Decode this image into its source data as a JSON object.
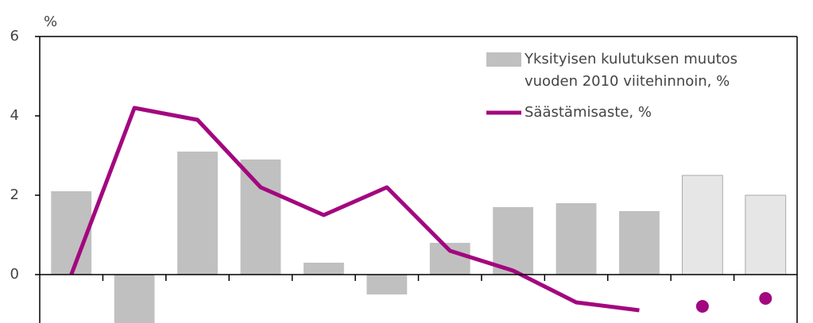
{
  "chart_data": {
    "type": "bar-line",
    "y_unit_label": "%",
    "categories": [
      null,
      null,
      null,
      null,
      null,
      null,
      null,
      null,
      null,
      null,
      null,
      null
    ],
    "series": [
      {
        "name": "Yksityisen kulutuksen muutos vuoden 2010 viitehinnoin, %",
        "kind": "bar",
        "colors": [
          "#c0c0c0",
          "#c0c0c0",
          "#c0c0c0",
          "#c0c0c0",
          "#c0c0c0",
          "#c0c0c0",
          "#c0c0c0",
          "#c0c0c0",
          "#c0c0c0",
          "#c0c0c0",
          "#e6e6e6",
          "#e6e6e6"
        ],
        "values": [
          2.1,
          -1.3,
          3.1,
          2.9,
          0.3,
          -0.5,
          0.8,
          1.7,
          1.8,
          1.6,
          2.5,
          2.0
        ]
      },
      {
        "name": "Säästämisaste, %",
        "kind": "line",
        "color": "#a3077f",
        "values": [
          0,
          4.2,
          3.9,
          2.2,
          1.5,
          2.2,
          0.6,
          0.1,
          -0.7,
          -0.9,
          null,
          null
        ]
      },
      {
        "kind": "dot",
        "color": "#a3077f",
        "values": [
          null,
          null,
          null,
          null,
          null,
          null,
          null,
          null,
          null,
          null,
          -0.8,
          -0.6
        ]
      }
    ],
    "ylim": [
      -1.22,
      6
    ],
    "yticks": [
      0,
      2,
      4,
      6
    ],
    "grid": false
  }
}
